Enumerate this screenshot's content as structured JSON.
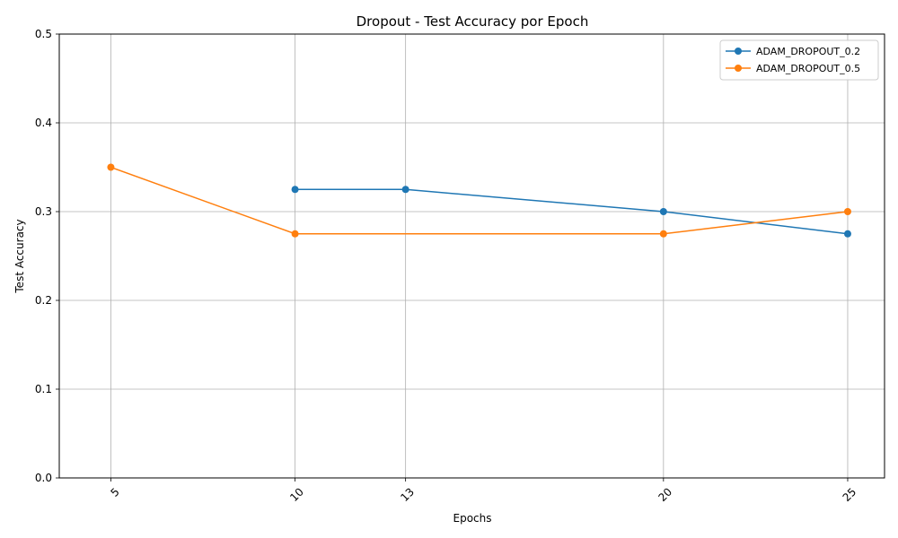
{
  "chart_data": {
    "type": "line",
    "title": "Dropout - Test Accuracy por Epoch",
    "xlabel": "Epochs",
    "ylabel": "Test Accuracy",
    "x_ticks": [
      5,
      10,
      13,
      20,
      25
    ],
    "x_tick_labels": [
      "5",
      "10",
      "13",
      "20",
      "25"
    ],
    "xlim": [
      3.6,
      26.0
    ],
    "y_ticks": [
      0.0,
      0.1,
      0.2,
      0.3,
      0.4,
      0.5
    ],
    "y_tick_labels": [
      "0.0",
      "0.1",
      "0.2",
      "0.3",
      "0.4",
      "0.5"
    ],
    "ylim": [
      0.0,
      0.5
    ],
    "grid": true,
    "legend_position": "top-right",
    "series": [
      {
        "name": "ADAM_DROPOUT_0.2",
        "color": "#1f77b4",
        "x": [
          10,
          13,
          20,
          25
        ],
        "y": [
          0.325,
          0.325,
          0.3,
          0.275
        ]
      },
      {
        "name": "ADAM_DROPOUT_0.5",
        "color": "#ff7f0e",
        "x": [
          5,
          10,
          20,
          25
        ],
        "y": [
          0.35,
          0.275,
          0.275,
          0.3
        ]
      }
    ]
  }
}
